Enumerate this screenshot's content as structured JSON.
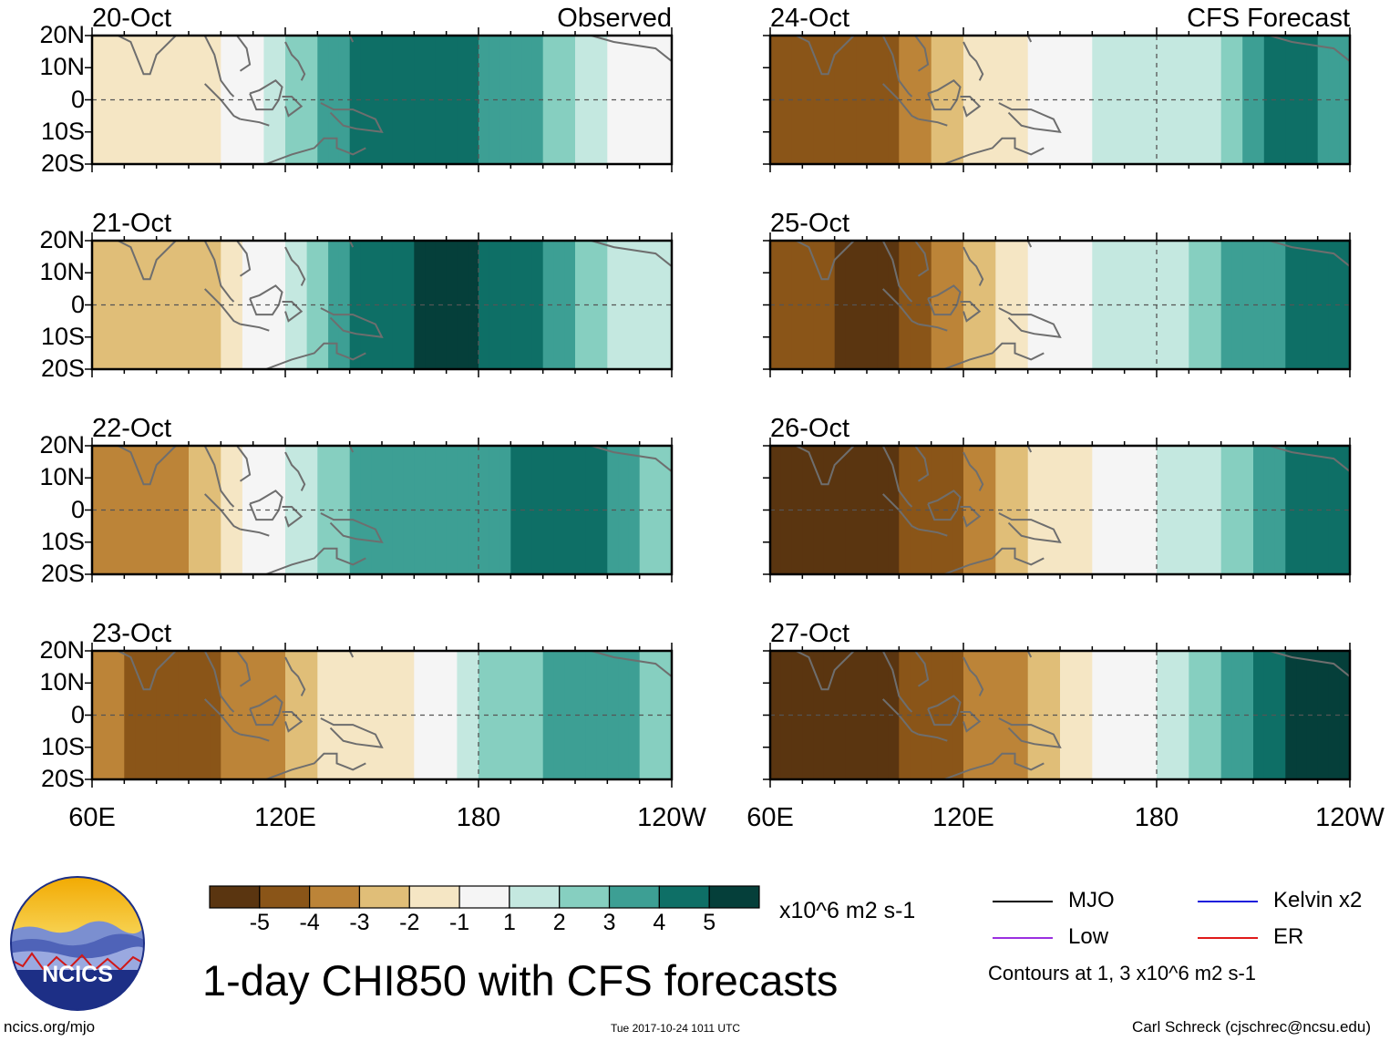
{
  "chart_data": {
    "type": "heatmap",
    "title": "1-day CHI850 with CFS forecasts",
    "observed_label": "Observed",
    "forecast_label": "CFS Forecast",
    "units": "x10^6 m2 s-1",
    "lat_ticks": [
      "20N",
      "10N",
      "0",
      "10S",
      "20S"
    ],
    "lon_ticks": [
      "60E",
      "120E",
      "180",
      "120W"
    ],
    "lon_ticks_right": [
      "60E",
      "120E",
      "180",
      "120W"
    ],
    "lat_range": [
      -20,
      20
    ],
    "lon_range": [
      60,
      240
    ],
    "colorbar": {
      "levels": [
        "-5",
        "-4",
        "-3",
        "-2",
        "-1",
        "1",
        "2",
        "3",
        "4",
        "5"
      ],
      "colors": [
        "#5a3510",
        "#8a5518",
        "#bc8438",
        "#e0be78",
        "#f5e6c4",
        "#f5f5f5",
        "#c4e8e0",
        "#86cfc0",
        "#3d9f94",
        "#0e6f66",
        "#053f3a"
      ]
    },
    "panels": [
      {
        "date": "20-Oct",
        "group": "observed",
        "anomaly_by_lon": [
          {
            "lon": 60,
            "value": -1
          },
          {
            "lon": 80,
            "value": -2
          },
          {
            "lon": 100,
            "value": -1
          },
          {
            "lon": 120,
            "value": 2
          },
          {
            "lon": 140,
            "value": 4
          },
          {
            "lon": 160,
            "value": 5
          },
          {
            "lon": 180,
            "value": 4
          },
          {
            "lon": 200,
            "value": 3
          },
          {
            "lon": 220,
            "value": 1
          },
          {
            "lon": 240,
            "value": -1
          }
        ]
      },
      {
        "date": "21-Oct",
        "group": "observed",
        "anomaly_by_lon": [
          {
            "lon": 60,
            "value": -2
          },
          {
            "lon": 80,
            "value": -3
          },
          {
            "lon": 100,
            "value": -2
          },
          {
            "lon": 120,
            "value": 1
          },
          {
            "lon": 140,
            "value": 4
          },
          {
            "lon": 160,
            "value": 5
          },
          {
            "lon": 180,
            "value": 5
          },
          {
            "lon": 200,
            "value": 4
          },
          {
            "lon": 220,
            "value": 2
          },
          {
            "lon": 240,
            "value": 1
          }
        ]
      },
      {
        "date": "22-Oct",
        "group": "observed",
        "anomaly_by_lon": [
          {
            "lon": 60,
            "value": -3
          },
          {
            "lon": 80,
            "value": -4
          },
          {
            "lon": 100,
            "value": -2
          },
          {
            "lon": 120,
            "value": 1
          },
          {
            "lon": 140,
            "value": 3
          },
          {
            "lon": 160,
            "value": 4
          },
          {
            "lon": 180,
            "value": 3
          },
          {
            "lon": 200,
            "value": 5
          },
          {
            "lon": 220,
            "value": 4
          },
          {
            "lon": 240,
            "value": 2
          }
        ]
      },
      {
        "date": "23-Oct",
        "group": "observed",
        "anomaly_by_lon": [
          {
            "lon": 60,
            "value": -3
          },
          {
            "lon": 80,
            "value": -5
          },
          {
            "lon": 100,
            "value": -4
          },
          {
            "lon": 120,
            "value": -3
          },
          {
            "lon": 140,
            "value": -1
          },
          {
            "lon": 160,
            "value": -1
          },
          {
            "lon": 180,
            "value": 2
          },
          {
            "lon": 200,
            "value": 3
          },
          {
            "lon": 220,
            "value": 4
          },
          {
            "lon": 240,
            "value": 2
          }
        ]
      },
      {
        "date": "24-Oct",
        "group": "forecast",
        "anomaly_by_lon": [
          {
            "lon": 60,
            "value": -4
          },
          {
            "lon": 80,
            "value": -5
          },
          {
            "lon": 100,
            "value": -4
          },
          {
            "lon": 120,
            "value": -2
          },
          {
            "lon": 140,
            "value": -1
          },
          {
            "lon": 160,
            "value": 1
          },
          {
            "lon": 180,
            "value": 1
          },
          {
            "lon": 200,
            "value": 2
          },
          {
            "lon": 220,
            "value": 5
          },
          {
            "lon": 240,
            "value": 3
          }
        ]
      },
      {
        "date": "25-Oct",
        "group": "forecast",
        "anomaly_by_lon": [
          {
            "lon": 60,
            "value": -4
          },
          {
            "lon": 80,
            "value": -5
          },
          {
            "lon": 100,
            "value": -5
          },
          {
            "lon": 120,
            "value": -3
          },
          {
            "lon": 140,
            "value": -1
          },
          {
            "lon": 160,
            "value": 1
          },
          {
            "lon": 180,
            "value": 1
          },
          {
            "lon": 200,
            "value": 3
          },
          {
            "lon": 220,
            "value": 4
          },
          {
            "lon": 240,
            "value": 5
          }
        ]
      },
      {
        "date": "26-Oct",
        "group": "forecast",
        "anomaly_by_lon": [
          {
            "lon": 60,
            "value": -5
          },
          {
            "lon": 80,
            "value": -5
          },
          {
            "lon": 100,
            "value": -5
          },
          {
            "lon": 120,
            "value": -4
          },
          {
            "lon": 140,
            "value": -2
          },
          {
            "lon": 160,
            "value": -1
          },
          {
            "lon": 180,
            "value": 1
          },
          {
            "lon": 200,
            "value": 2
          },
          {
            "lon": 220,
            "value": 4
          },
          {
            "lon": 240,
            "value": 5
          }
        ]
      },
      {
        "date": "27-Oct",
        "group": "forecast",
        "anomaly_by_lon": [
          {
            "lon": 60,
            "value": -5
          },
          {
            "lon": 80,
            "value": -5
          },
          {
            "lon": 100,
            "value": -5
          },
          {
            "lon": 120,
            "value": -4
          },
          {
            "lon": 140,
            "value": -3
          },
          {
            "lon": 160,
            "value": -1
          },
          {
            "lon": 180,
            "value": 1
          },
          {
            "lon": 200,
            "value": 3
          },
          {
            "lon": 220,
            "value": 5
          },
          {
            "lon": 240,
            "value": 5
          }
        ]
      }
    ],
    "legend": [
      {
        "label": "MJO",
        "color": "#000000"
      },
      {
        "label": "Kelvin x2",
        "color": "#1a1adc"
      },
      {
        "label": "Low",
        "color": "#9b30e0"
      },
      {
        "label": "ER",
        "color": "#e01a1a"
      }
    ],
    "contours_note": "Contours at 1, 3 x10^6 m2 s-1"
  },
  "logo": {
    "text": "NCICS"
  },
  "footer": {
    "left": "ncics.org/mjo",
    "center": "Tue 2017-10-24 1011 UTC",
    "right": "Carl Schreck (cjschrec@ncsu.edu)"
  }
}
